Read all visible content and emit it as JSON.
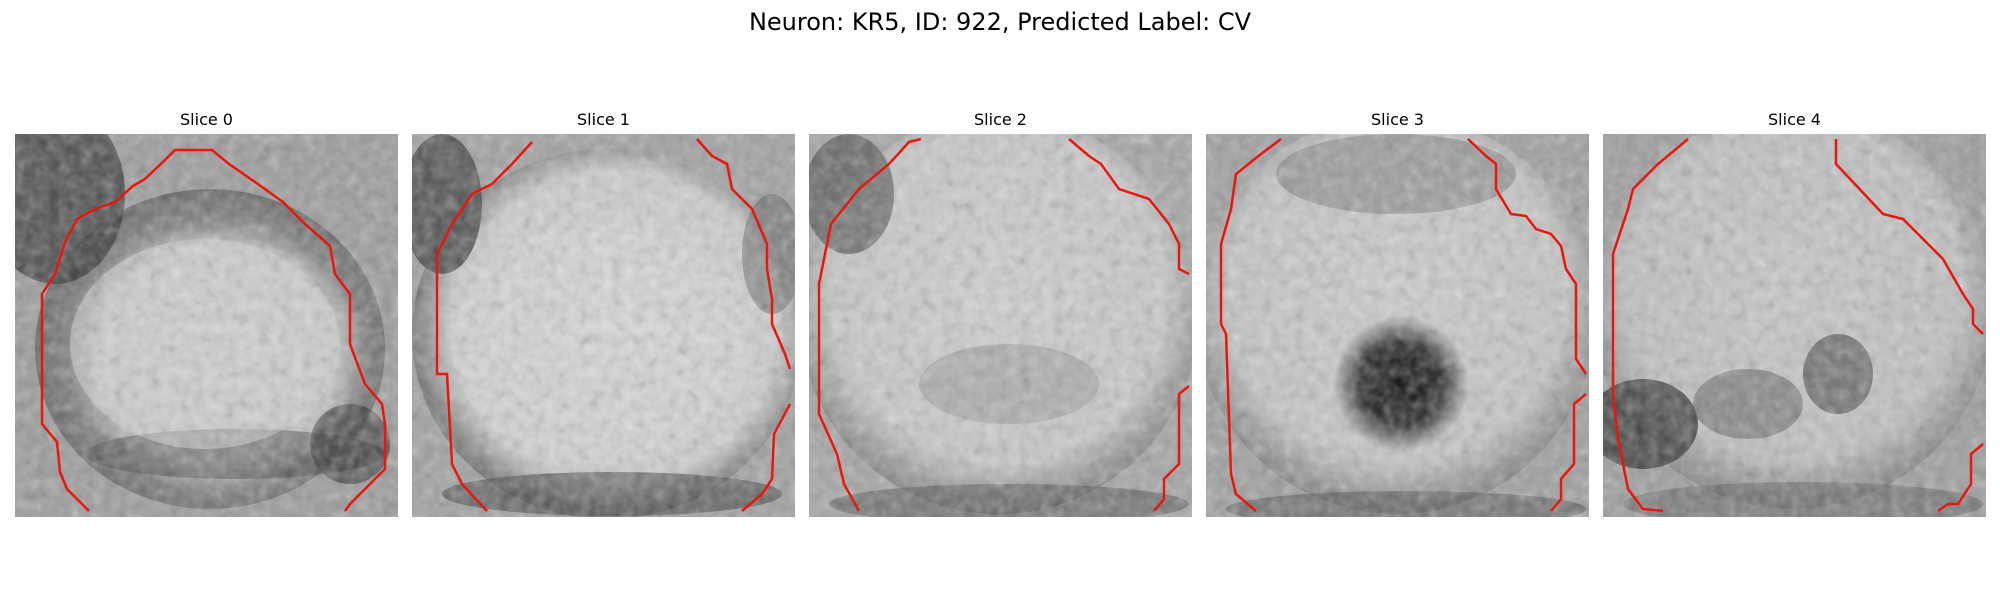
{
  "figure": {
    "title": "Neuron: KR5, ID: 922, Predicted Label: CV"
  },
  "panels": [
    {
      "title": "Slice 0"
    },
    {
      "title": "Slice 1"
    },
    {
      "title": "Slice 2"
    },
    {
      "title": "Slice 3"
    },
    {
      "title": "Slice 4"
    }
  ],
  "colors": {
    "contour": "#e8160c",
    "background": "#ffffff"
  }
}
